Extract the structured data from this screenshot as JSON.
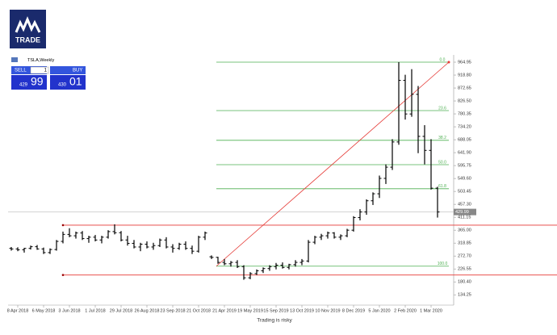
{
  "header": {
    "logo": "TRADE"
  },
  "trade_panel": {
    "sell_label": "SELL",
    "buy_label": "BUY",
    "lot": "1",
    "sell_small": "429",
    "sell_big": "99",
    "buy_small": "430",
    "buy_big": "01"
  },
  "chart_data": {
    "type": "ohlc",
    "symbol_label": "TSLA,Weekly",
    "color": "#000000",
    "categories": [
      null,
      "8 Apr 2018",
      null,
      null,
      null,
      "6 May 2018",
      null,
      null,
      null,
      "3 Jun 2018",
      null,
      null,
      null,
      "1 Jul 2018",
      null,
      null,
      null,
      "29 Jul 2018",
      null,
      null,
      null,
      "26 Aug 2018",
      null,
      null,
      null,
      "23 Sep 2018",
      null,
      null,
      null,
      "21 Oct 2018",
      null,
      null,
      null,
      "21 Apr 2019",
      null,
      null,
      null,
      "19 May 2019",
      null,
      null,
      null,
      "15 Sep 2019",
      null,
      null,
      null,
      "13 Oct 2019",
      null,
      null,
      null,
      "10 Nov 2019",
      null,
      null,
      null,
      "8 Dec 2019",
      null,
      null,
      null,
      "5 Jan 2020",
      null,
      null,
      null,
      "2 Feb 2020",
      null,
      null,
      null,
      "1 Mar 2020",
      null
    ],
    "open": [
      300,
      298,
      295,
      300,
      306,
      298,
      285,
      296,
      325,
      350,
      345,
      355,
      335,
      340,
      330,
      340,
      360,
      356,
      330,
      318,
      305,
      315,
      305,
      310,
      330,
      305,
      300,
      315,
      300,
      290,
      340,
      270,
      268,
      250,
      245,
      250,
      235,
      195,
      210,
      220,
      228,
      235,
      240,
      232,
      242,
      250,
      255,
      322,
      340,
      345,
      355,
      340,
      345,
      365,
      410,
      430,
      470,
      495,
      550,
      590,
      680,
      900,
      780,
      850,
      700,
      650,
      515
    ],
    "high": [
      305,
      304,
      302,
      310,
      312,
      303,
      300,
      330,
      360,
      372,
      360,
      362,
      345,
      348,
      345,
      365,
      386,
      362,
      345,
      330,
      320,
      325,
      320,
      335,
      340,
      315,
      320,
      325,
      310,
      345,
      360,
      275,
      270,
      262,
      255,
      258,
      240,
      215,
      225,
      232,
      240,
      248,
      250,
      245,
      258,
      262,
      330,
      345,
      352,
      360,
      358,
      350,
      370,
      415,
      440,
      475,
      500,
      560,
      600,
      690,
      965,
      920,
      940,
      880,
      740,
      690,
      520
    ],
    "low": [
      292,
      290,
      285,
      296,
      295,
      280,
      280,
      292,
      318,
      340,
      335,
      330,
      320,
      325,
      318,
      335,
      350,
      325,
      310,
      300,
      290,
      300,
      295,
      305,
      300,
      285,
      295,
      295,
      280,
      285,
      330,
      262,
      245,
      240,
      235,
      230,
      188,
      190,
      205,
      212,
      220,
      225,
      228,
      225,
      235,
      240,
      250,
      315,
      330,
      335,
      335,
      330,
      340,
      360,
      400,
      420,
      455,
      480,
      530,
      580,
      670,
      760,
      770,
      640,
      600,
      510,
      410
    ],
    "close": [
      298,
      295,
      300,
      306,
      298,
      285,
      296,
      325,
      350,
      345,
      355,
      335,
      340,
      330,
      340,
      360,
      356,
      330,
      318,
      305,
      315,
      305,
      310,
      330,
      305,
      300,
      315,
      300,
      290,
      340,
      355,
      268,
      250,
      245,
      250,
      235,
      195,
      210,
      220,
      228,
      235,
      240,
      232,
      242,
      250,
      255,
      322,
      340,
      345,
      355,
      340,
      345,
      365,
      410,
      430,
      470,
      495,
      550,
      590,
      680,
      900,
      780,
      850,
      700,
      650,
      515,
      430
    ],
    "ylim": [
      97.4,
      979.4
    ],
    "yticks": [
      964.95,
      {
        "value": 918.8,
        "label": "918.80"
      },
      872.65,
      {
        "value": 826.5,
        "label": "826.50"
      },
      780.35,
      {
        "value": 734.2,
        "label": "734.20"
      },
      688.05,
      {
        "value": 641.9,
        "label": "641.90"
      },
      595.75,
      {
        "value": 549.6,
        "label": "549.60"
      },
      503.45,
      {
        "value": 457.3,
        "label": "457.30"
      },
      411.15,
      {
        "value": 365,
        "label": "365.00"
      },
      318.85,
      {
        "value": 272.7,
        "label": "272.70"
      },
      226.55,
      {
        "value": 180.4,
        "label": "180.40"
      },
      134.25
    ],
    "current_price": 429.99,
    "fibonacci": {
      "color": "#4caf50",
      "levels": [
        {
          "label": "0.0",
          "price": 965
        },
        {
          "label": "23.6",
          "price": 792
        },
        {
          "label": "38.2",
          "price": 686
        },
        {
          "label": "50.0",
          "price": 599
        },
        {
          "label": "61.8",
          "price": 513
        },
        {
          "label": "100.0",
          "price": 236.5
        }
      ]
    },
    "red_lines": {
      "color": "#e53935",
      "levels": [
        383,
        205
      ],
      "trend_from": 236.5,
      "trend_to": 965
    },
    "footer": "Trading is risky"
  }
}
